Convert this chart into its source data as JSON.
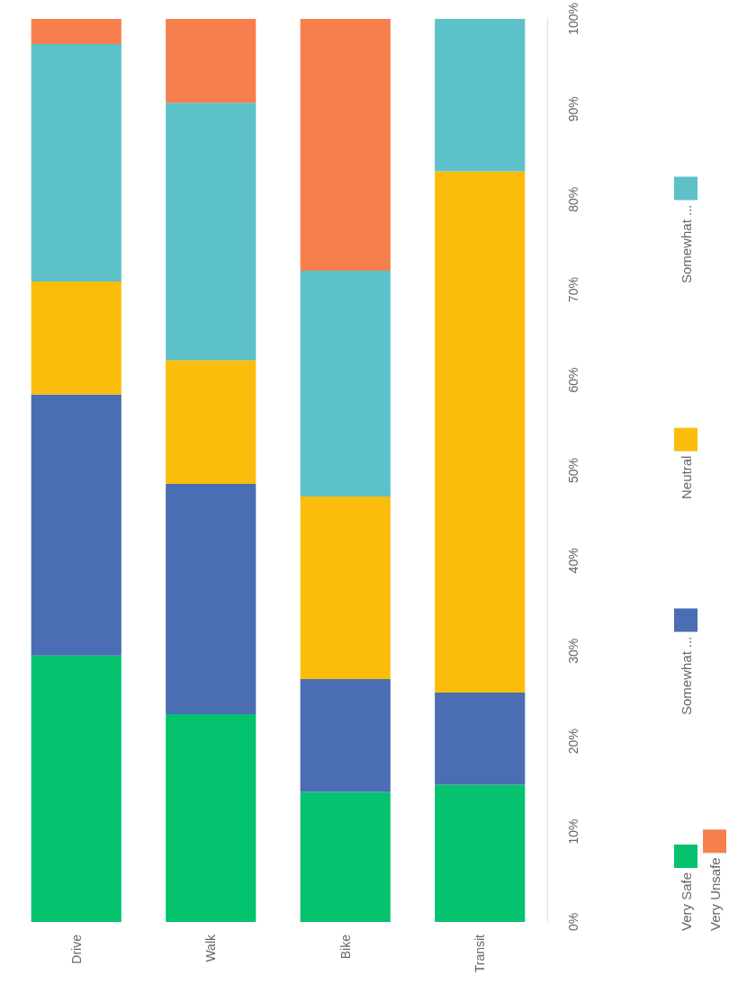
{
  "chart_data": {
    "type": "bar",
    "stacked": true,
    "categories": [
      "Drive",
      "Walk",
      "Bike",
      "Transit"
    ],
    "series": [
      {
        "name": "Very Safe",
        "color": "#05c26e",
        "values": [
          29.5,
          23,
          14.4,
          15.2
        ]
      },
      {
        "name": "Somewhat ...",
        "color": "#4a6db3",
        "values": [
          28.9,
          25.5,
          12.5,
          10.2
        ]
      },
      {
        "name": "Neutral",
        "color": "#fbbd0c",
        "values": [
          12.5,
          13.7,
          20.2,
          57.7
        ]
      },
      {
        "name": "Somewhat ...",
        "color": "#5cc1c8",
        "values": [
          26.3,
          28.5,
          25,
          16.9
        ]
      },
      {
        "name": "Very Unsafe",
        "color": "#f77f4d",
        "values": [
          2.8,
          9.3,
          27.9,
          0
        ]
      }
    ],
    "ylim": [
      0,
      100
    ],
    "yticks": [
      {
        "value": 0,
        "label": "0%"
      },
      {
        "value": 10,
        "label": "10%"
      },
      {
        "value": 20,
        "label": "20%"
      },
      {
        "value": 30,
        "label": "30%"
      },
      {
        "value": 40,
        "label": "40%"
      },
      {
        "value": 50,
        "label": "50%"
      },
      {
        "value": 60,
        "label": "60%"
      },
      {
        "value": 70,
        "label": "70%"
      },
      {
        "value": 80,
        "label": "80%"
      },
      {
        "value": 90,
        "label": "90%"
      },
      {
        "value": 100,
        "label": "100%"
      }
    ],
    "grid": false,
    "legend": "right"
  }
}
